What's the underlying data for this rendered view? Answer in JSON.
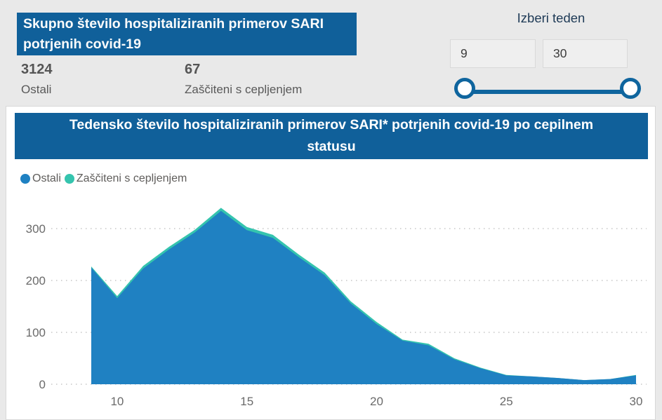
{
  "summary": {
    "title": "Skupno število hospitaliziranih primerov SARI potrjenih covid-19",
    "stats": [
      {
        "value": "3124",
        "label": "Ostali"
      },
      {
        "value": "67",
        "label": "Zaščiteni s cepljenjem"
      }
    ]
  },
  "week_selector": {
    "title": "Izberi teden",
    "start_value": "9",
    "end_value": "30"
  },
  "chart_data": {
    "type": "area",
    "stacked": true,
    "title": "Tedensko število hospitaliziranih primerov SARI* potrjenih covid-19 po cepilnem statusu",
    "x": [
      9,
      10,
      11,
      12,
      13,
      14,
      15,
      16,
      17,
      18,
      19,
      20,
      21,
      22,
      23,
      24,
      25,
      26,
      27,
      28,
      29,
      30
    ],
    "series": [
      {
        "name": "Ostali",
        "color": "#1F81C2",
        "values": [
          225,
          166,
          223,
          260,
          293,
          334,
          297,
          282,
          245,
          210,
          156,
          116,
          84,
          75,
          48,
          31,
          17,
          15,
          12,
          8,
          10,
          17
        ]
      },
      {
        "name": "Zaščiteni s cepljenjem",
        "color": "#35C4AE",
        "values": [
          2,
          4,
          5,
          5,
          5,
          6,
          6,
          6,
          5,
          5,
          4,
          4,
          2,
          3,
          2,
          1,
          1,
          0,
          0,
          0,
          0,
          1
        ]
      }
    ],
    "x_ticks": [
      10,
      15,
      20,
      25,
      30
    ],
    "y_ticks": [
      0,
      100,
      200,
      300
    ],
    "ylim": [
      0,
      348
    ],
    "xlabel": "",
    "ylabel": "",
    "grid": "horizontal-dotted",
    "legend_position": "top-left"
  },
  "colors": {
    "accent_blue": "#10609A",
    "area_blue": "#1F81C2",
    "area_teal": "#35C4AE",
    "slider_blue": "#0F659E",
    "page_bg": "#E9E9E9",
    "axis_text": "#6A6A6A"
  }
}
